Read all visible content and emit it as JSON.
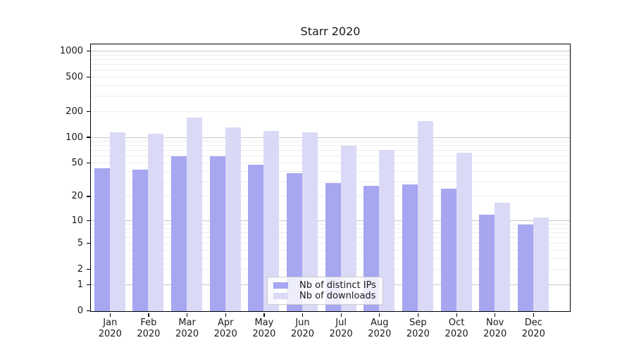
{
  "chart_data": {
    "type": "bar",
    "title": "Starr 2020",
    "categories": [
      "Jan 2020",
      "Feb 2020",
      "Mar 2020",
      "Apr 2020",
      "May 2020",
      "Jun 2020",
      "Jul 2020",
      "Aug 2020",
      "Sep 2020",
      "Oct 2020",
      "Nov 2020",
      "Dec 2020"
    ],
    "series": [
      {
        "name": "Nb of distinct IPs",
        "color": "#a6a6f1",
        "values": [
          44,
          42,
          60,
          60,
          48,
          38,
          29,
          27,
          28,
          25,
          12,
          9
        ]
      },
      {
        "name": "Nb of downloads",
        "color": "#dadaf7",
        "values": [
          115,
          111,
          170,
          131,
          120,
          115,
          81,
          72,
          157,
          67,
          17,
          11
        ]
      }
    ],
    "yscale": "log1p",
    "yticks": [
      0,
      1,
      2,
      5,
      10,
      20,
      50,
      100,
      200,
      500,
      1000
    ],
    "ylim": [
      0,
      1250
    ],
    "grid": "horizontal, faint minors with darker major lines at 1, 10, 100, 1000",
    "legend_position": "lower center inside plot"
  },
  "colors": {
    "background": "#ffffff",
    "axis": "#000000",
    "grid_minor": "#ededed",
    "grid_major": "#c8c8c8",
    "text": "#1a1a1a",
    "legend_border": "#cccccc"
  }
}
